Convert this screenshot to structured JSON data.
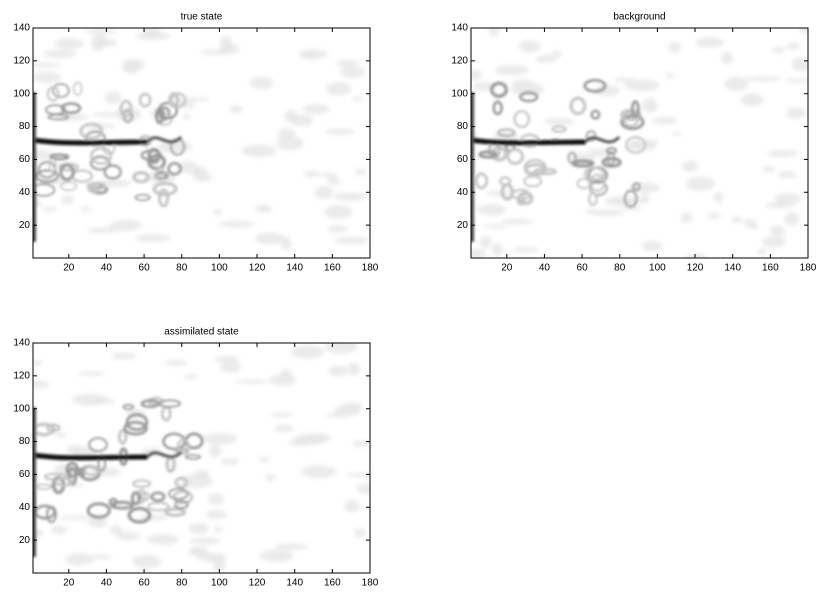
{
  "chart_data": [
    {
      "type": "heatmap",
      "title": "true state",
      "xlim": [
        1,
        180
      ],
      "ylim": [
        0,
        140
      ],
      "xticks": [
        20,
        40,
        60,
        80,
        100,
        120,
        140,
        160,
        180
      ],
      "yticks": [
        20,
        40,
        60,
        80,
        100,
        120,
        140
      ]
    },
    {
      "type": "heatmap",
      "title": "background",
      "xlim": [
        1,
        180
      ],
      "ylim": [
        0,
        140
      ],
      "xticks": [
        20,
        40,
        60,
        80,
        100,
        120,
        140,
        160,
        180
      ],
      "yticks": [
        20,
        40,
        60,
        80,
        100,
        120,
        140
      ]
    },
    {
      "type": "heatmap",
      "title": "assimilated state",
      "xlim": [
        1,
        180
      ],
      "ylim": [
        0,
        140
      ],
      "xticks": [
        20,
        40,
        60,
        80,
        100,
        120,
        140,
        160,
        180
      ],
      "yticks": [
        20,
        40,
        60,
        80,
        100,
        120,
        140
      ]
    }
  ]
}
